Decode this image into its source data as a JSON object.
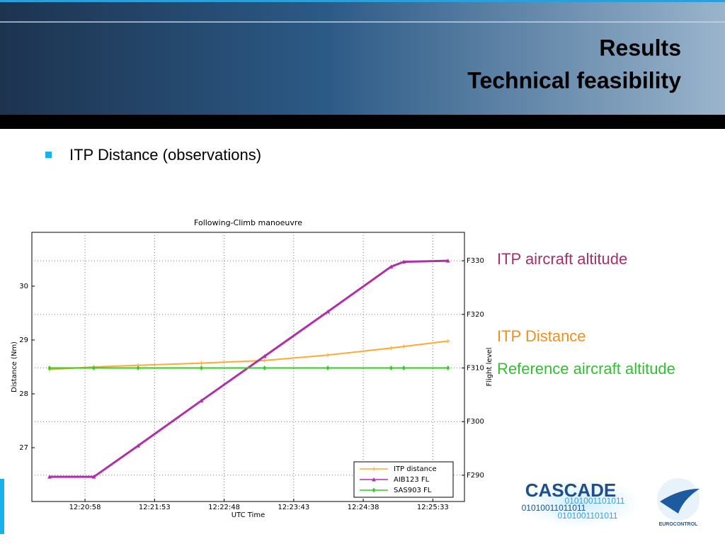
{
  "header": {
    "title": "Results",
    "subtitle": "Technical feasibility"
  },
  "bullet": "ITP Distance (observations)",
  "annotations": [
    {
      "text": "ITP aircraft altitude",
      "color": "#a0306e"
    },
    {
      "text": "ITP Distance",
      "color": "#f0901a"
    },
    {
      "text": "Reference aircraft altitude",
      "color": "#30c030"
    }
  ],
  "logos": {
    "cascade": "CASCADE",
    "binary": [
      "0101001101011",
      "01010011011011",
      "0101001101011"
    ],
    "eurocontrol": "EUROCONTROL"
  },
  "chart_data": {
    "type": "line",
    "title": "Following-Climb manoeuvre",
    "x_label": "UTC Time",
    "y_label": "Distance (Nm)",
    "y2_label": "Flight level",
    "x": [
      44430,
      44465,
      44500,
      44550,
      44600,
      44650,
      44700,
      44710,
      44745
    ],
    "xlim": [
      44416,
      44758
    ],
    "xticks": [
      {
        "value": 44458,
        "label": "12:20:58"
      },
      {
        "value": 44513,
        "label": "12:21:53"
      },
      {
        "value": 44568,
        "label": "12:22:48"
      },
      {
        "value": 44623,
        "label": "12:23:43"
      },
      {
        "value": 44678,
        "label": "12:24:38"
      },
      {
        "value": 44733,
        "label": "12:25:33"
      }
    ],
    "ylim": [
      26.0,
      31.0
    ],
    "yticks": [
      27,
      28,
      29,
      30
    ],
    "y2lim": [
      285.1,
      335.3
    ],
    "y2ticks": [
      {
        "value": 290,
        "label": "F290"
      },
      {
        "value": 300,
        "label": "F300"
      },
      {
        "value": 310,
        "label": "F310"
      },
      {
        "value": 320,
        "label": "F320"
      },
      {
        "value": 330,
        "label": "F330"
      }
    ],
    "grid": true,
    "legend": "lower right",
    "series": [
      {
        "name": "ITP distance",
        "color": "#ffaa33",
        "marker": "plus",
        "values": [
          28.45,
          28.5,
          28.53,
          28.57,
          28.62,
          28.72,
          28.85,
          28.88,
          28.98
        ]
      },
      {
        "name": "AIB123 FL",
        "color": "#b030a8",
        "marker": "triangle",
        "axis": "y2",
        "values": [
          289.7,
          289.7,
          295.5,
          303.9,
          312.2,
          320.5,
          328.9,
          329.8,
          330.0
        ]
      },
      {
        "name": "SAS903 FL",
        "color": "#33cc22",
        "marker": "diamond",
        "axis": "y2",
        "values": [
          310,
          310,
          310,
          310,
          310,
          310,
          310,
          310,
          310
        ]
      }
    ]
  }
}
